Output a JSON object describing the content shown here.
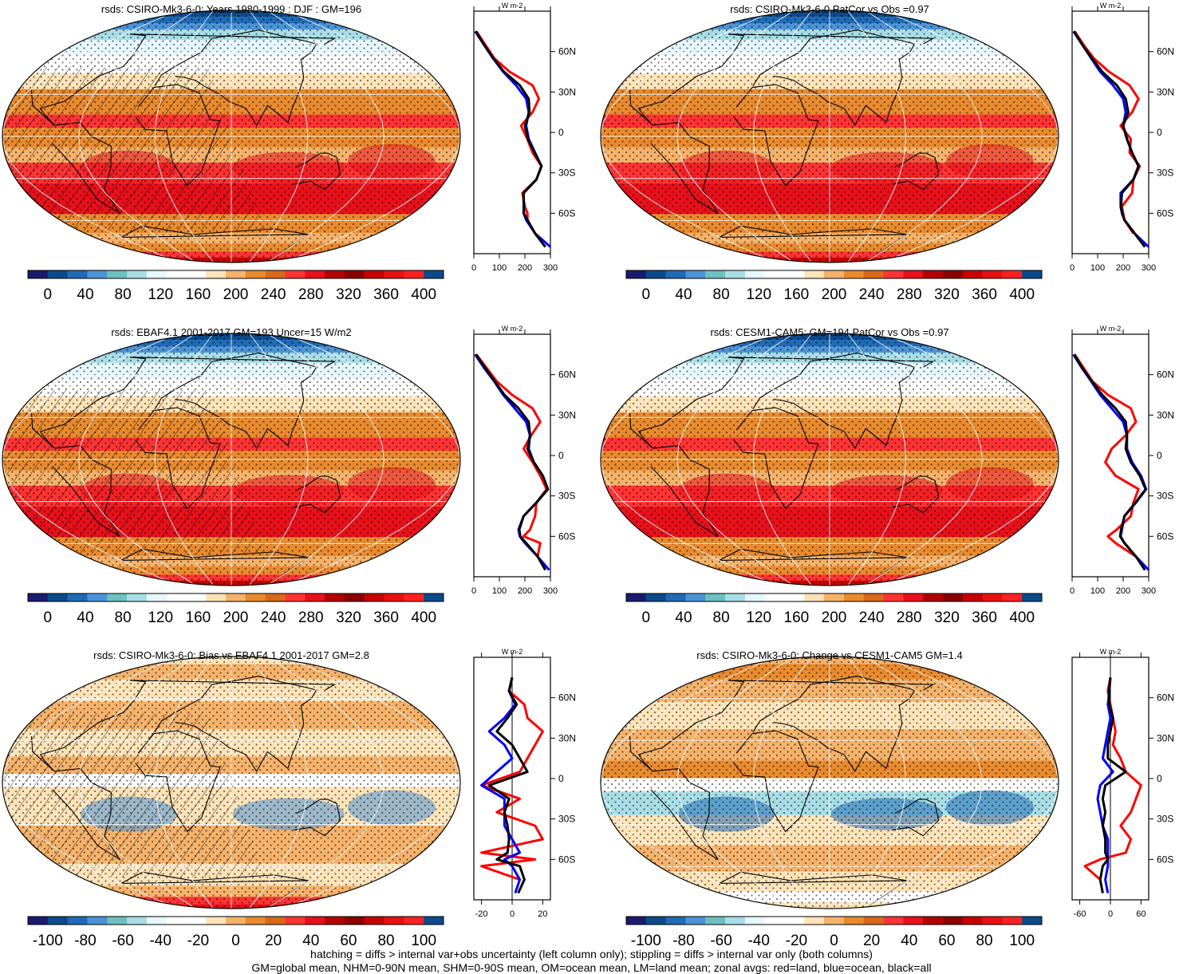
{
  "footer": {
    "line1": "hatching = diffs > internal var+obs uncertainty (left column only); stippling = diffs > internal var only (both columns)",
    "line2": "GM=global mean, NHM=0-90N mean, SHM=0-90S mean, OM=ocean mean, LM=land mean; zonal avgs: red=land, blue=ocean, black=all"
  },
  "colors": {
    "land": "#ff0000",
    "ocean": "#0000ff",
    "all": "#000000",
    "mean_scale": [
      "#1b1b6e",
      "#0c4a8c",
      "#1f6bb5",
      "#4c93d6",
      "#6cc0c0",
      "#a8dde6",
      "#e6f7ff",
      "#ffffff",
      "#ffffff",
      "#fde3b8",
      "#f4b26b",
      "#e88a2e",
      "#d8691b",
      "#ff3333",
      "#e8101a",
      "#b30000",
      "#8b0000",
      "#c80000",
      "#e81010",
      "#ff2020",
      "#0c4a8c"
    ],
    "diff_scale": [
      "#1b1b6e",
      "#0c4a8c",
      "#1f6bb5",
      "#4c93d6",
      "#6cc0c0",
      "#a8dde6",
      "#e6f7ff",
      "#ffffff",
      "#ffffff",
      "#fde3b8",
      "#f4b26b",
      "#e88a2e",
      "#d8691b",
      "#ff3333",
      "#e8101a",
      "#b30000",
      "#8b0000",
      "#c80000",
      "#e81010",
      "#ff2020",
      "#0c4a8c"
    ]
  },
  "chart_data": [
    {
      "type": "heatmap",
      "title": "rsds: CSIRO-Mk3-6-0: Years 1980-1999 : DJF : GM=196",
      "colorbar_ticks": [
        "0",
        "40",
        "80",
        "120",
        "160",
        "200",
        "240",
        "280",
        "320",
        "360",
        "400"
      ],
      "zonal": {
        "units": "W m-2",
        "xticks": [
          "0",
          "100",
          "200",
          "300"
        ],
        "xlim": [
          0,
          300
        ],
        "yticks": [
          "60N",
          "30N",
          "0",
          "30S",
          "60S"
        ],
        "lat": [
          85,
          75,
          65,
          55,
          45,
          35,
          25,
          15,
          5,
          -5,
          -15,
          -25,
          -35,
          -45,
          -55,
          -60,
          -65,
          -75,
          -85
        ],
        "land": [
          null,
          10,
          45,
          80,
          140,
          230,
          255,
          230,
          185,
          210,
          230,
          265,
          245,
          190,
          200,
          210,
          210,
          240,
          null
        ],
        "ocean": [
          null,
          5,
          40,
          75,
          115,
          165,
          205,
          215,
          205,
          215,
          240,
          265,
          245,
          195,
          195,
          195,
          205,
          240,
          300
        ],
        "all": [
          null,
          8,
          40,
          77,
          118,
          180,
          215,
          218,
          200,
          212,
          238,
          265,
          245,
          195,
          196,
          196,
          210,
          240,
          280
        ]
      }
    },
    {
      "type": "heatmap",
      "title": "rsds: CSIRO-Mk3-6-0 PatCor vs Obs =0.97",
      "colorbar_ticks": [
        "0",
        "40",
        "80",
        "120",
        "160",
        "200",
        "240",
        "280",
        "320",
        "360",
        "400"
      ],
      "zonal": {
        "units": "W m-2",
        "xticks": [
          "0",
          "100",
          "200",
          "300"
        ],
        "xlim": [
          0,
          300
        ],
        "yticks": [
          "60N",
          "30N",
          "0",
          "30S",
          "60S"
        ],
        "lat": [
          85,
          75,
          65,
          55,
          45,
          35,
          25,
          15,
          5,
          -5,
          -15,
          -25,
          -35,
          -45,
          -55,
          -60,
          -65,
          -75,
          -85
        ],
        "land": [
          null,
          10,
          45,
          85,
          145,
          225,
          260,
          235,
          190,
          230,
          225,
          265,
          240,
          235,
          195,
          200,
          205,
          240,
          null
        ],
        "ocean": [
          null,
          5,
          40,
          75,
          110,
          160,
          200,
          210,
          200,
          215,
          235,
          260,
          240,
          190,
          190,
          195,
          205,
          245,
          300
        ],
        "all": [
          null,
          8,
          40,
          78,
          118,
          175,
          210,
          220,
          200,
          215,
          235,
          260,
          240,
          195,
          192,
          196,
          205,
          245,
          285
        ]
      }
    },
    {
      "type": "heatmap",
      "title": "rsds: EBAF4.1 2001-2017 GM=193 Uncer=15 W/m2",
      "colorbar_ticks": [
        "0",
        "40",
        "80",
        "120",
        "160",
        "200",
        "240",
        "280",
        "320",
        "360",
        "400"
      ],
      "zonal": {
        "units": "W m-2",
        "xticks": [
          "0",
          "100",
          "200",
          "300"
        ],
        "xlim": [
          0,
          300
        ],
        "yticks": [
          "60N",
          "30N",
          "0",
          "30S",
          "60S"
        ],
        "lat": [
          85,
          75,
          65,
          55,
          45,
          35,
          25,
          15,
          5,
          -5,
          -15,
          -25,
          -35,
          -45,
          -55,
          -60,
          -65,
          -75,
          -85
        ],
        "land": [
          null,
          10,
          50,
          90,
          150,
          230,
          260,
          225,
          195,
          230,
          260,
          285,
          245,
          240,
          220,
          195,
          260,
          250,
          null
        ],
        "ocean": [
          null,
          5,
          40,
          80,
          115,
          160,
          205,
          220,
          215,
          235,
          270,
          290,
          245,
          195,
          175,
          180,
          200,
          250,
          295
        ],
        "all": [
          null,
          8,
          45,
          82,
          120,
          175,
          215,
          220,
          210,
          235,
          270,
          290,
          245,
          195,
          178,
          182,
          205,
          250,
          280
        ]
      }
    },
    {
      "type": "heatmap",
      "title": "rsds: CESM1-CAM5: GM=194 PatCor vs Obs =0.97",
      "colorbar_ticks": [
        "0",
        "40",
        "80",
        "120",
        "160",
        "200",
        "240",
        "280",
        "320",
        "360",
        "400"
      ],
      "zonal": {
        "units": "W m-2",
        "xticks": [
          "0",
          "100",
          "200",
          "300"
        ],
        "xlim": [
          0,
          300
        ],
        "yticks": [
          "60N",
          "30N",
          "0",
          "30S",
          "60S"
        ],
        "lat": [
          85,
          75,
          65,
          55,
          45,
          35,
          25,
          15,
          5,
          -5,
          -15,
          -25,
          -35,
          -45,
          -55,
          -60,
          -65,
          -75,
          -85
        ],
        "land": [
          null,
          10,
          45,
          80,
          140,
          230,
          250,
          210,
          155,
          130,
          170,
          260,
          240,
          230,
          175,
          140,
          170,
          250,
          null
        ],
        "ocean": [
          null,
          5,
          38,
          75,
          110,
          155,
          200,
          215,
          215,
          235,
          270,
          290,
          250,
          205,
          195,
          190,
          205,
          250,
          300
        ],
        "all": [
          null,
          8,
          40,
          78,
          118,
          170,
          210,
          215,
          210,
          230,
          265,
          288,
          248,
          205,
          192,
          188,
          205,
          250,
          285
        ]
      }
    },
    {
      "type": "heatmap",
      "title": "rsds: CSIRO-Mk3-6-0: Bias vs EBAF4.1 2001-2017 GM=2.8",
      "colorbar_ticks": [
        "-100",
        "-80",
        "-60",
        "-40",
        "-20",
        "0",
        "20",
        "40",
        "60",
        "80",
        "100"
      ],
      "zonal": {
        "units": "W m-2",
        "xticks": [
          "-20",
          "0",
          "20"
        ],
        "xlim": [
          -25,
          25
        ],
        "yticks": [
          "60N",
          "30N",
          "0",
          "30S",
          "60S"
        ],
        "lat": [
          85,
          75,
          65,
          55,
          45,
          35,
          25,
          15,
          5,
          -5,
          -15,
          -25,
          -35,
          -45,
          -55,
          -60,
          -65,
          -75,
          -85
        ],
        "land": [
          null,
          0,
          -2,
          8,
          10,
          20,
          15,
          10,
          5,
          -20,
          5,
          -10,
          15,
          20,
          -20,
          15,
          -20,
          5,
          null
        ],
        "ocean": [
          null,
          0,
          -2,
          2,
          -5,
          -15,
          -5,
          0,
          -10,
          -20,
          -5,
          -5,
          -5,
          0,
          5,
          -5,
          0,
          5,
          2
        ],
        "all": [
          null,
          0,
          -2,
          3,
          -3,
          -10,
          0,
          5,
          10,
          -15,
          -2,
          -5,
          -3,
          -2,
          -3,
          -10,
          5,
          8,
          4
        ]
      }
    },
    {
      "type": "heatmap",
      "title": "rsds: CSIRO-Mk3-6-0: Change vs CESM1-CAM5 GM=1.4",
      "colorbar_ticks": [
        "-100",
        "-80",
        "-60",
        "-40",
        "-20",
        "0",
        "20",
        "40",
        "60",
        "80",
        "100"
      ],
      "zonal": {
        "units": "W m-2",
        "xticks": [
          "-60",
          "0",
          "60"
        ],
        "xlim": [
          -75,
          75
        ],
        "yticks": [
          "60N",
          "30N",
          "0",
          "30S",
          "60S"
        ],
        "lat": [
          85,
          75,
          65,
          55,
          45,
          35,
          25,
          15,
          5,
          -5,
          -15,
          -25,
          -35,
          -45,
          -55,
          -60,
          -65,
          -75,
          -85
        ],
        "land": [
          null,
          0,
          -5,
          0,
          5,
          10,
          5,
          20,
          30,
          60,
          50,
          40,
          20,
          40,
          30,
          -20,
          -50,
          -20,
          null
        ],
        "ocean": [
          null,
          0,
          -2,
          -5,
          0,
          -5,
          -10,
          -15,
          5,
          -20,
          -25,
          -20,
          -15,
          -5,
          -5,
          -5,
          -5,
          -10,
          -5
        ],
        "all": [
          null,
          0,
          -3,
          -2,
          5,
          0,
          -5,
          -5,
          30,
          -10,
          -15,
          -10,
          -15,
          -10,
          -10,
          -5,
          -15,
          -20,
          -15
        ]
      }
    }
  ]
}
